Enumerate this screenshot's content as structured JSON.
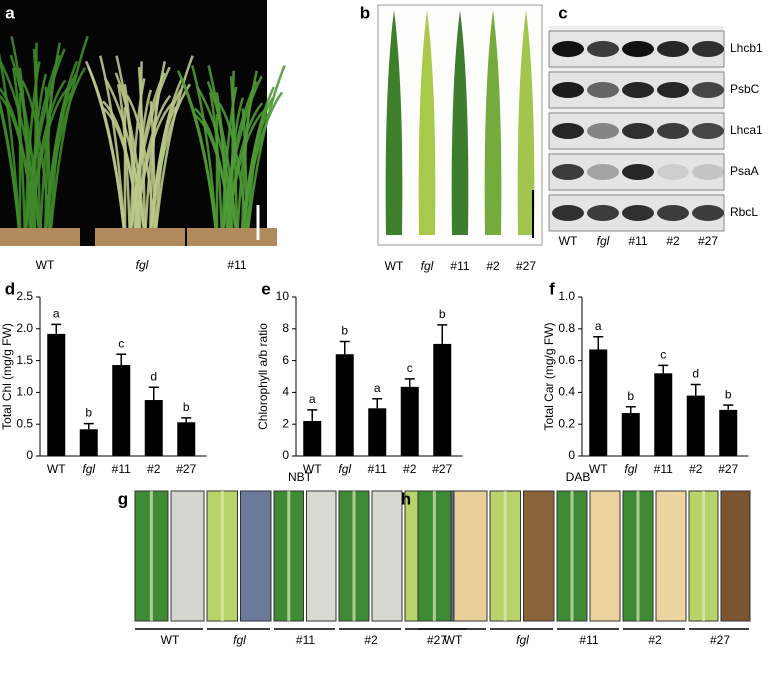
{
  "panel_a": {
    "label": "a",
    "groups": [
      "WT",
      "fgl",
      "#11"
    ]
  },
  "panel_b": {
    "label": "b",
    "groups": [
      "WT",
      "fgl",
      "#11",
      "#2",
      "#27"
    ]
  },
  "panel_c": {
    "label": "c",
    "proteins": [
      "Lhcb1",
      "PsbC",
      "Lhca1",
      "PsaA",
      "RbcL"
    ],
    "groups": [
      "WT",
      "fgl",
      "#11",
      "#2",
      "#27"
    ]
  },
  "chart_data": [
    {
      "type": "bar",
      "label": "d",
      "ylabel": "Total Chl (mg/g FW)",
      "categories": [
        "WT",
        "fgl",
        "#11",
        "#2",
        "#27"
      ],
      "values": [
        1.92,
        0.42,
        1.43,
        0.88,
        0.53
      ],
      "errors": [
        0.15,
        0.09,
        0.17,
        0.2,
        0.07
      ],
      "annotations": [
        "a",
        "b",
        "c",
        "d",
        "b"
      ],
      "color": "#000000",
      "ylim": [
        0,
        2.5
      ],
      "yticks": [
        0,
        0.5,
        {
          "value": 1,
          "label": "1.0"
        },
        1.5,
        {
          "value": 2,
          "label": "2.0"
        },
        2.5
      ]
    },
    {
      "type": "bar",
      "label": "e",
      "ylabel": "Chlorophyll a/b ratio",
      "categories": [
        "WT",
        "fgl",
        "#11",
        "#2",
        "#27"
      ],
      "values": [
        2.2,
        6.4,
        3.0,
        4.35,
        7.05
      ],
      "errors": [
        0.7,
        0.8,
        0.6,
        0.5,
        1.2
      ],
      "annotations": [
        "a",
        "b",
        "a",
        "c",
        "b"
      ],
      "color": "#000000",
      "ylim": [
        0,
        10
      ],
      "yticks": [
        0,
        2,
        4,
        6,
        8,
        10
      ]
    },
    {
      "type": "bar",
      "label": "f",
      "ylabel": "Total Car (mg/g FW)",
      "categories": [
        "WT",
        "fgl",
        "#11",
        "#2",
        "#27"
      ],
      "values": [
        0.67,
        0.27,
        0.52,
        0.38,
        0.29
      ],
      "errors": [
        0.08,
        0.04,
        0.05,
        0.07,
        0.03
      ],
      "annotations": [
        "a",
        "b",
        "c",
        "d",
        "b"
      ],
      "color": "#000000",
      "ylim": [
        0,
        1
      ],
      "yticks": [
        0,
        0.2,
        0.4,
        0.6,
        0.8,
        {
          "value": 1,
          "label": "1.0"
        }
      ]
    }
  ],
  "panel_g": {
    "label": "g",
    "stain": "NBT",
    "groups": [
      "WT",
      "fgl",
      "#11",
      "#2",
      "#27"
    ]
  },
  "panel_h": {
    "label": "h",
    "stain": "DAB",
    "groups": [
      "WT",
      "fgl",
      "#11",
      "#2",
      "#27"
    ]
  }
}
